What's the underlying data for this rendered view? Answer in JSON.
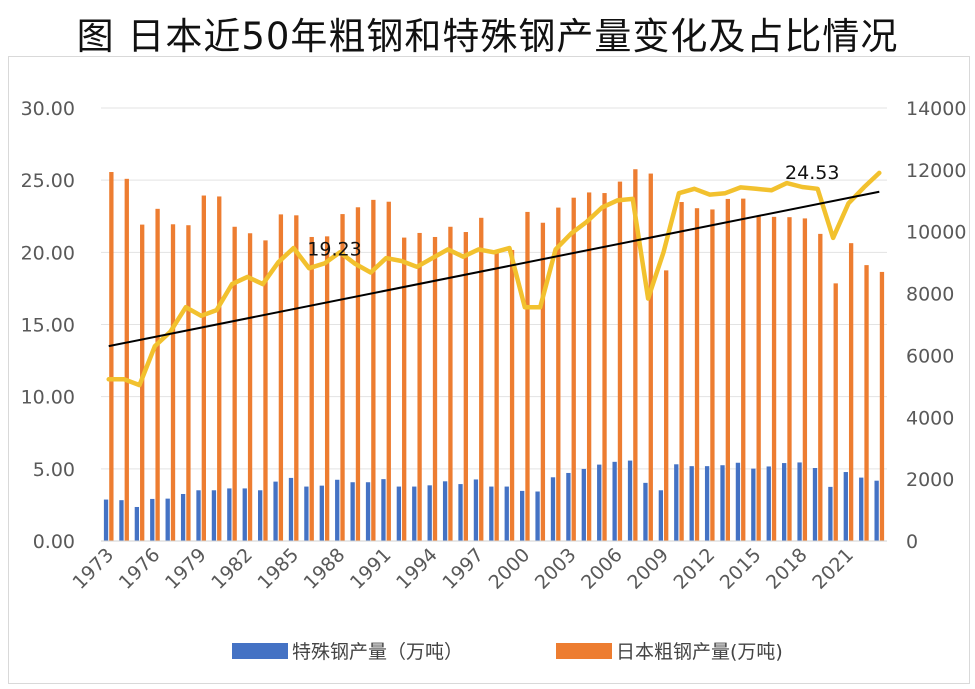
{
  "figure": {
    "title": "图 日本近50年粗钢和特殊钢产量变化及占比情况"
  },
  "legend": {
    "special": "特殊钢产量（万吨）",
    "crude": "日本粗钢产量(万吨)"
  },
  "colors": {
    "crude": "#ED7D31",
    "special": "#4472C4",
    "ratio": "#F2C12E",
    "trend": "#000000",
    "grid": "#e3e3e3",
    "axis_text": "#595959"
  },
  "chart_data": {
    "type": "bar",
    "title": "图 日本近50年粗钢和特殊钢产量变化及占比情况",
    "categories": [
      "1973",
      "1974",
      "1975",
      "1976",
      "1977",
      "1978",
      "1979",
      "1980",
      "1981",
      "1982",
      "1983",
      "1984",
      "1985",
      "1986",
      "1987",
      "1988",
      "1989",
      "1990",
      "1991",
      "1992",
      "1993",
      "1994",
      "1995",
      "1996",
      "1997",
      "1998",
      "1999",
      "2000",
      "2001",
      "2002",
      "2003",
      "2004",
      "2005",
      "2006",
      "2007",
      "2008",
      "2009",
      "2010",
      "2011",
      "2012",
      "2013",
      "2014",
      "2015",
      "2016",
      "2017",
      "2018",
      "2019",
      "2020",
      "2021",
      "2022",
      "2023"
    ],
    "x_tick_labels": [
      "1973",
      "1976",
      "1979",
      "1982",
      "1985",
      "1988",
      "1991",
      "1994",
      "1997",
      "2000",
      "2003",
      "2006",
      "2009",
      "2012",
      "2015",
      "2018",
      "2021"
    ],
    "y_left": {
      "ticks": [
        "0.00",
        "5.00",
        "10.00",
        "15.00",
        "20.00",
        "25.00",
        "30.00"
      ],
      "range": [
        0,
        30
      ]
    },
    "y_right": {
      "ticks": [
        "0",
        "2000",
        "4000",
        "6000",
        "8000",
        "10000",
        "12000",
        "14000"
      ],
      "range": [
        0,
        14000
      ]
    },
    "grid": true,
    "legend_position": "bottom",
    "series": [
      {
        "name": "特殊钢产量（万吨）",
        "type": "bar",
        "axis": "right",
        "values": [
          1340,
          1320,
          1100,
          1360,
          1370,
          1520,
          1640,
          1640,
          1700,
          1700,
          1640,
          1920,
          2040,
          1760,
          1790,
          1980,
          1900,
          1900,
          2000,
          1760,
          1760,
          1800,
          1930,
          1840,
          1990,
          1760,
          1760,
          1620,
          1600,
          2060,
          2200,
          2330,
          2470,
          2560,
          2600,
          1880,
          1640,
          2480,
          2420,
          2420,
          2450,
          2530,
          2340,
          2410,
          2520,
          2540,
          2360,
          1750,
          2230,
          2050,
          1950
        ]
      },
      {
        "name": "日本粗钢产量(万吨)",
        "type": "bar",
        "axis": "right",
        "values": [
          11930,
          11710,
          10230,
          10740,
          10240,
          10210,
          11170,
          11140,
          10160,
          9950,
          9720,
          10560,
          10530,
          9830,
          9850,
          10570,
          10790,
          11030,
          10970,
          9810,
          9960,
          9830,
          10160,
          9990,
          10450,
          9350,
          9410,
          10640,
          10290,
          10780,
          11100,
          11270,
          11250,
          11620,
          12020,
          11880,
          8750,
          10960,
          10760,
          10720,
          11060,
          11070,
          10520,
          10480,
          10470,
          10430,
          9930,
          8330,
          9630,
          8920,
          8700
        ]
      },
      {
        "type": "line",
        "axis": "left",
        "values": [
          11.2,
          11.2,
          10.8,
          13.5,
          14.5,
          16.2,
          15.6,
          16.0,
          17.8,
          18.3,
          17.8,
          19.3,
          20.3,
          18.9,
          19.23,
          20.0,
          19.2,
          18.6,
          19.6,
          19.4,
          19.0,
          19.6,
          20.2,
          19.7,
          20.2,
          20.0,
          20.3,
          16.2,
          16.2,
          20.2,
          21.3,
          22.1,
          23.1,
          23.6,
          23.7,
          16.8,
          20.0,
          24.1,
          24.4,
          24.0,
          24.1,
          24.5,
          24.4,
          24.3,
          24.8,
          24.53,
          24.4,
          21.0,
          23.4,
          24.5,
          25.5
        ],
        "annotations": [
          {
            "year": "1987",
            "label": "19.23"
          },
          {
            "year": "2018",
            "label": "24.53"
          }
        ]
      },
      {
        "type": "trendline",
        "axis": "left",
        "start": {
          "year": "1973",
          "value": 13.5
        },
        "end": {
          "year": "2023",
          "value": 24.2
        }
      }
    ]
  }
}
